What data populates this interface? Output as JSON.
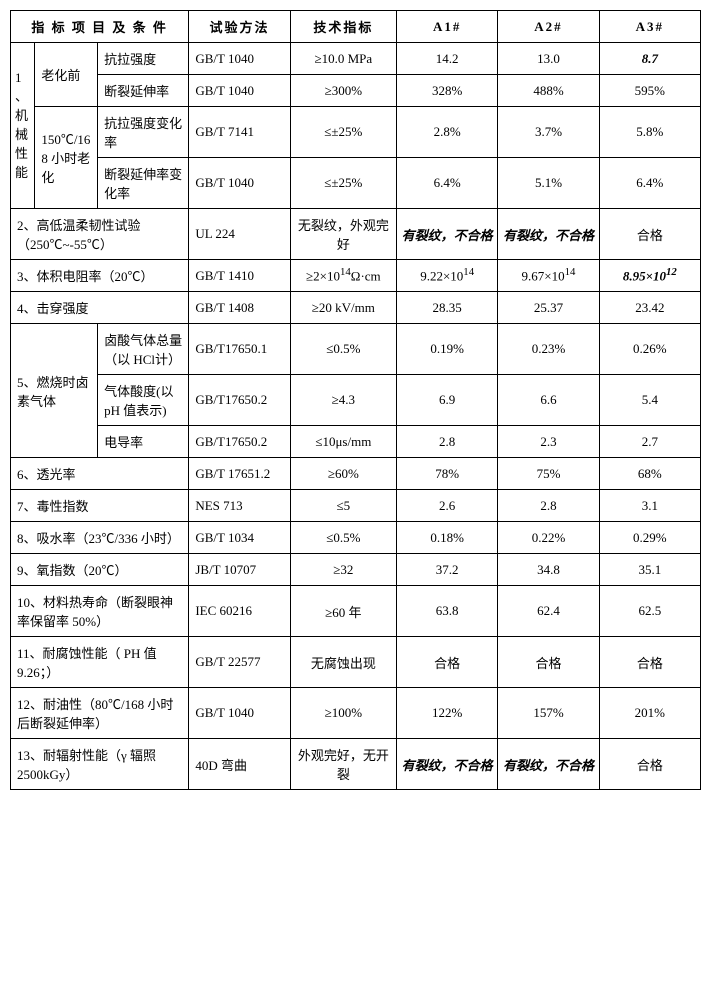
{
  "headers": {
    "c1": "指 标 项 目 及 条 件",
    "c2": "试验方法",
    "c3": "技术指标",
    "c4": "A1#",
    "c5": "A2#",
    "c6": "A3#"
  },
  "section1": {
    "idx": "1、机械性能",
    "sub1": "老化前",
    "sub2": "150℃/168 小时老化",
    "r1": {
      "label": "抗拉强度",
      "method": "GB/T 1040",
      "spec": "≥10.0 MPa",
      "a1": "14.2",
      "a2": "13.0",
      "a3": "8.7"
    },
    "r2": {
      "label": "断裂延伸率",
      "method": "GB/T 1040",
      "spec": "≥300%",
      "a1": "328%",
      "a2": "488%",
      "a3": "595%"
    },
    "r3": {
      "label": "抗拉强度变化率",
      "method": "GB/T 7141",
      "spec": "≤±25%",
      "a1": "2.8%",
      "a2": "3.7%",
      "a3": "5.8%"
    },
    "r4": {
      "label": "断裂延伸率变化率",
      "method": "GB/T 1040",
      "spec": "≤±25%",
      "a1": "6.4%",
      "a2": "5.1%",
      "a3": "6.4%"
    }
  },
  "r2": {
    "label": "2、高低温柔韧性试验（250℃~-55℃）",
    "method": "UL 224",
    "spec": "无裂纹，外观完好",
    "a1": "有裂纹，不合格",
    "a2": "有裂纹，不合格",
    "a3": "合格"
  },
  "r3": {
    "label": "3、体积电阻率（20℃）",
    "method": "GB/T 1410",
    "spec_pre": "≥2×10",
    "spec_sup": "14",
    "spec_post": "Ω·cm",
    "a1_pre": "9.22×10",
    "a1_sup": "14",
    "a2_pre": "9.67×10",
    "a2_sup": "14",
    "a3_pre": "8.95×10",
    "a3_sup": "12"
  },
  "r4": {
    "label": "4、击穿强度",
    "method": "GB/T 1408",
    "spec": "≥20 kV/mm",
    "a1": "28.35",
    "a2": "25.37",
    "a3": "23.42"
  },
  "section5": {
    "idx": "5、燃烧时卤素气体",
    "r1": {
      "label": "卤酸气体总量（以 HCl计）",
      "method": "GB/T17650.1",
      "spec": "≤0.5%",
      "a1": "0.19%",
      "a2": "0.23%",
      "a3": "0.26%"
    },
    "r2": {
      "label": "气体酸度(以pH 值表示)",
      "method": "GB/T17650.2",
      "spec": "≥4.3",
      "a1": "6.9",
      "a2": "6.6",
      "a3": "5.4"
    },
    "r3": {
      "label": "电导率",
      "method": "GB/T17650.2",
      "spec": "≤10μs/mm",
      "a1": "2.8",
      "a2": "2.3",
      "a3": "2.7"
    }
  },
  "r6": {
    "label": "6、透光率",
    "method": "GB/T 17651.2",
    "spec": "≥60%",
    "a1": "78%",
    "a2": "75%",
    "a3": "68%"
  },
  "r7": {
    "label": "7、毒性指数",
    "method": "NES 713",
    "spec": "≤5",
    "a1": "2.6",
    "a2": "2.8",
    "a3": "3.1"
  },
  "r8": {
    "label": "8、吸水率（23℃/336 小时）",
    "method": "GB/T 1034",
    "spec": "≤0.5%",
    "a1": "0.18%",
    "a2": "0.22%",
    "a3": "0.29%"
  },
  "r9": {
    "label": "9、氧指数（20℃）",
    "method": "JB/T 10707",
    "spec": "≥32",
    "a1": "37.2",
    "a2": "34.8",
    "a3": "35.1"
  },
  "r10": {
    "label": "10、材料热寿命（断裂眼神率保留率 50%）",
    "method": "IEC 60216",
    "spec": "≥60 年",
    "a1": "63.8",
    "a2": "62.4",
    "a3": "62.5"
  },
  "r11": {
    "label": "11、耐腐蚀性能（ PH 值9.26；）",
    "method": "GB/T 22577",
    "spec": "无腐蚀出现",
    "a1": "合格",
    "a2": "合格",
    "a3": "合格"
  },
  "r12": {
    "label": "12、耐油性（80℃/168 小时后断裂延伸率）",
    "method": "GB/T 1040",
    "spec": "≥100%",
    "a1": "122%",
    "a2": "157%",
    "a3": "201%"
  },
  "r13": {
    "label": "13、耐辐射性能（γ 辐照2500kGy）",
    "method": "40D 弯曲",
    "spec": "外观完好，无开裂",
    "a1": "有裂纹，不合格",
    "a2": "有裂纹，不合格",
    "a3": "合格"
  }
}
